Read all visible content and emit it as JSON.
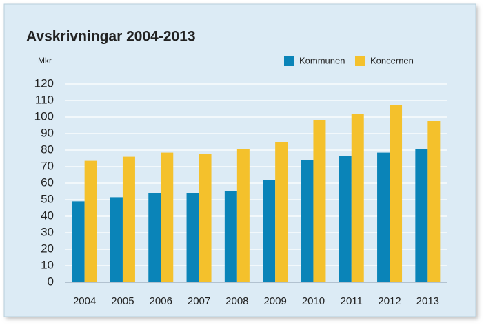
{
  "chart_data": {
    "type": "bar",
    "title": "Avskrivningar 2004-2013",
    "y_label": "Mkr",
    "categories": [
      "2004",
      "2005",
      "2006",
      "2007",
      "2008",
      "2009",
      "2010",
      "2011",
      "2012",
      "2013"
    ],
    "series": [
      {
        "name": "Kommunen",
        "color": "#0a84b8",
        "values": [
          49,
          51.5,
          54,
          54,
          55,
          62,
          74,
          76.5,
          78.5,
          80.5
        ]
      },
      {
        "name": "Koncernen",
        "color": "#f4c12c",
        "values": [
          73.5,
          76,
          78.5,
          77.5,
          80.5,
          85,
          98,
          102,
          107.5,
          97.5
        ]
      }
    ],
    "ylim": [
      0,
      120
    ],
    "yticks": [
      0,
      10,
      20,
      30,
      40,
      50,
      60,
      70,
      80,
      90,
      100,
      110,
      120
    ],
    "grid": true
  }
}
